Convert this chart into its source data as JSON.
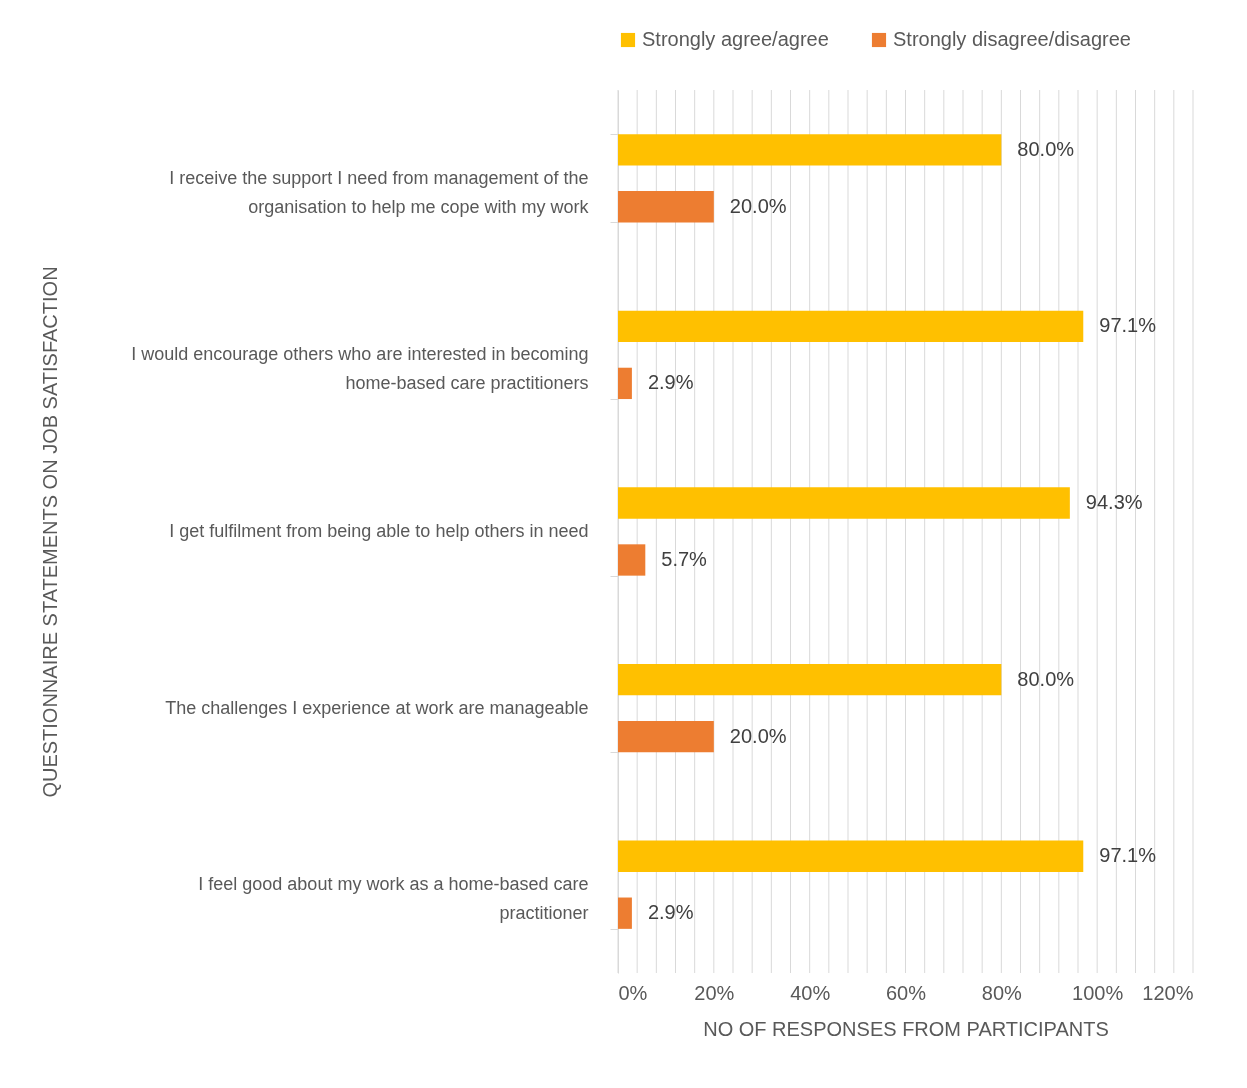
{
  "chart_data": {
    "type": "bar",
    "orientation": "horizontal",
    "xlabel": "NO OF RESPONSES FROM PARTICIPANTS",
    "ylabel": "QUESTIONNAIRE STATEMENTS ON JOB  SATISFACTION",
    "categories": [
      "I receive the support I need from management of the organisation to help me cope with my work",
      "I would encourage others who are interested in becoming home-based care practitioners",
      "I get fulfilment from being able to help others in need",
      "The challenges I experience at work are manageable",
      "I feel good about my work as a home-based care practitioner"
    ],
    "series": [
      {
        "name": "Strongly agree/agree",
        "color": "#ffc000",
        "values": [
          80.0,
          97.1,
          94.3,
          80.0,
          97.1
        ],
        "value_labels": [
          "80.0%",
          "97.1%",
          "94.3%",
          "80.0%",
          "97.1%"
        ]
      },
      {
        "name": "Strongly disagree/disagree",
        "color": "#ed7d31",
        "values": [
          20.0,
          2.9,
          5.7,
          20.0,
          2.9
        ],
        "value_labels": [
          "20.0%",
          "2.9%",
          "5.7%",
          "20.0%",
          "2.9%"
        ]
      }
    ],
    "xlim": [
      0,
      120
    ],
    "xticks": [
      {
        "value": 0,
        "label": "0%"
      },
      {
        "value": 4,
        "label": null
      },
      {
        "value": 8,
        "label": null
      },
      {
        "value": 12,
        "label": null
      },
      {
        "value": 16,
        "label": null
      },
      {
        "value": 20,
        "label": "20%"
      },
      {
        "value": 24,
        "label": null
      },
      {
        "value": 28,
        "label": null
      },
      {
        "value": 32,
        "label": null
      },
      {
        "value": 36,
        "label": null
      },
      {
        "value": 40,
        "label": "40%"
      },
      {
        "value": 44,
        "label": null
      },
      {
        "value": 48,
        "label": null
      },
      {
        "value": 52,
        "label": null
      },
      {
        "value": 56,
        "label": null
      },
      {
        "value": 60,
        "label": "60%"
      },
      {
        "value": 64,
        "label": null
      },
      {
        "value": 68,
        "label": null
      },
      {
        "value": 72,
        "label": null
      },
      {
        "value": 76,
        "label": null
      },
      {
        "value": 80,
        "label": "80%"
      },
      {
        "value": 84,
        "label": null
      },
      {
        "value": 88,
        "label": null
      },
      {
        "value": 92,
        "label": null
      },
      {
        "value": 96,
        "label": null
      },
      {
        "value": 100,
        "label": "100%"
      },
      {
        "value": 104,
        "label": null
      },
      {
        "value": 108,
        "label": null
      },
      {
        "value": 112,
        "label": null
      },
      {
        "value": 116,
        "label": null
      },
      {
        "value": 120,
        "label": "120%"
      }
    ],
    "grid": "x",
    "legend": "top"
  }
}
